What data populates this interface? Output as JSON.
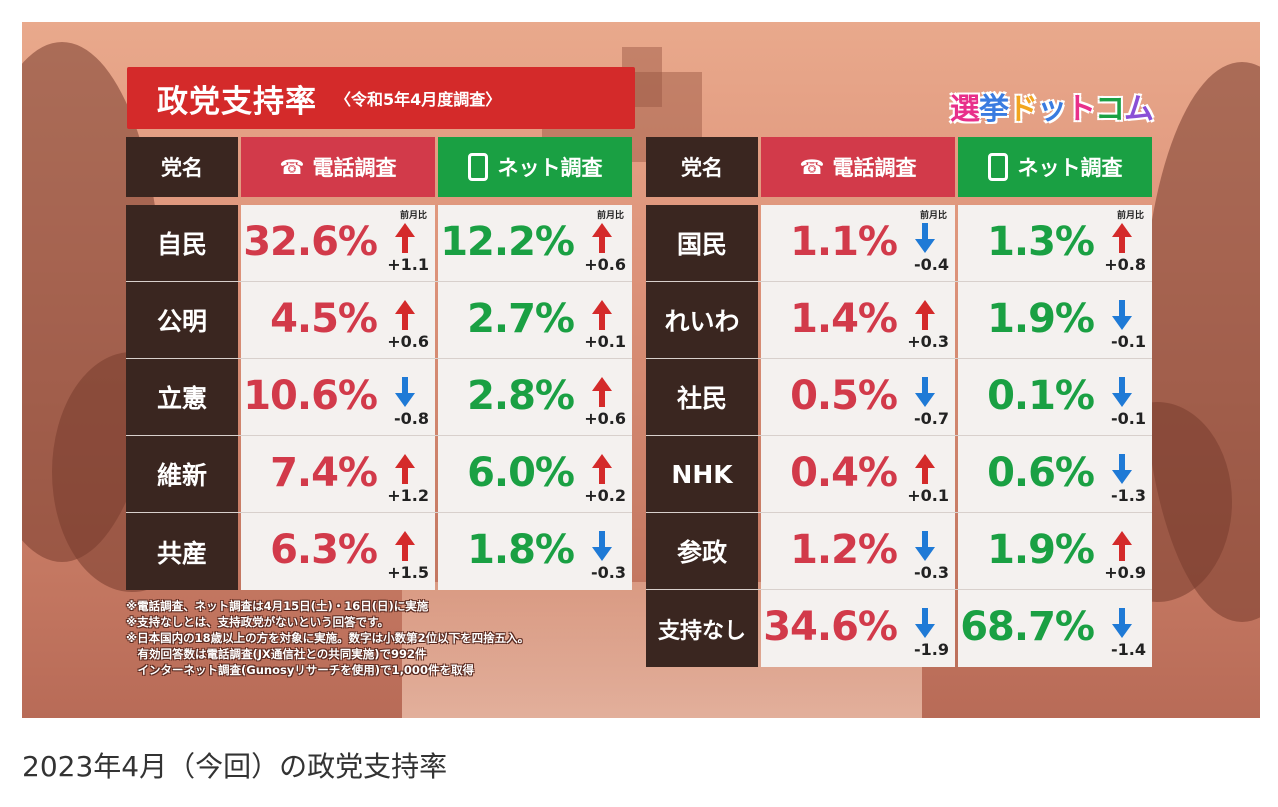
{
  "title": "政党支持率",
  "subtitle": "〈令和5年4月度調査〉",
  "logo": [
    "選",
    "挙",
    "ド",
    "ッ",
    "ト",
    "コ",
    "ム"
  ],
  "headers": {
    "party": "党名",
    "phone": "電話調査",
    "net": "ネット調査"
  },
  "prev_label": "前月比",
  "colors": {
    "up": "#d42a2a",
    "down": "#1f7ad6",
    "phone": "#d23a4a",
    "net": "#1aa043"
  },
  "chart_data": {
    "type": "table",
    "title": "政党支持率",
    "columns": [
      "党名",
      "電話調査",
      "前月比",
      "ネット調査",
      "前月比"
    ],
    "left": [
      {
        "party": "自民",
        "phone": "32.6%",
        "phone_delta": "+1.1",
        "net": "12.2%",
        "net_delta": "+0.6"
      },
      {
        "party": "公明",
        "phone": "4.5%",
        "phone_delta": "+0.6",
        "net": "2.7%",
        "net_delta": "+0.1"
      },
      {
        "party": "立憲",
        "phone": "10.6%",
        "phone_delta": "-0.8",
        "net": "2.8%",
        "net_delta": "+0.6"
      },
      {
        "party": "維新",
        "phone": "7.4%",
        "phone_delta": "+1.2",
        "net": "6.0%",
        "net_delta": "+0.2"
      },
      {
        "party": "共産",
        "phone": "6.3%",
        "phone_delta": "+1.5",
        "net": "1.8%",
        "net_delta": "-0.3"
      }
    ],
    "right": [
      {
        "party": "国民",
        "phone": "1.1%",
        "phone_delta": "-0.4",
        "net": "1.3%",
        "net_delta": "+0.8"
      },
      {
        "party": "れいわ",
        "phone": "1.4%",
        "phone_delta": "+0.3",
        "net": "1.9%",
        "net_delta": "-0.1"
      },
      {
        "party": "社民",
        "phone": "0.5%",
        "phone_delta": "-0.7",
        "net": "0.1%",
        "net_delta": "-0.1"
      },
      {
        "party": "NHK",
        "phone": "0.4%",
        "phone_delta": "+0.1",
        "net": "0.6%",
        "net_delta": "-1.3"
      },
      {
        "party": "参政",
        "phone": "1.2%",
        "phone_delta": "-0.3",
        "net": "1.9%",
        "net_delta": "+0.9"
      },
      {
        "party": "支持なし",
        "phone": "34.6%",
        "phone_delta": "-1.9",
        "net": "68.7%",
        "net_delta": "-1.4"
      }
    ]
  },
  "notes": [
    "※電話調査、ネット調査は4月15日(土)・16日(日)に実施",
    "※支持なしとは、支持政党がないという回答です。",
    "※日本国内の18歳以上の方を対象に実施。数字は小数第2位以下を四捨五入。",
    "　有効回答数は電話調査(JX通信社との共同実施)で992件",
    "　インターネット調査(Gunosyリサーチを使用)で1,000件を取得"
  ],
  "caption": "2023年4月（今回）の政党支持率"
}
